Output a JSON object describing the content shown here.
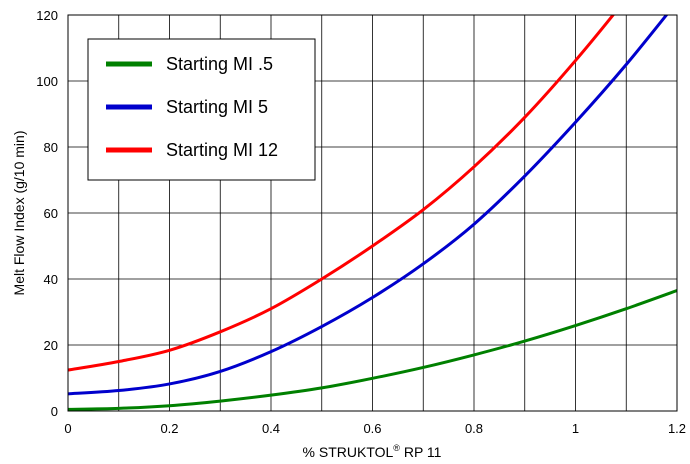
{
  "chart_data": {
    "type": "line",
    "title": "",
    "xlabel": {
      "prefix": "% STRUKTOL",
      "sup": "®",
      "suffix": " RP 11"
    },
    "ylabel": "Melt Flow Index (g/10 min)",
    "xlim": [
      0,
      1.2
    ],
    "ylim": [
      0,
      120
    ],
    "x_ticks": [
      0,
      0.2,
      0.4,
      0.6,
      0.8,
      1,
      1.2
    ],
    "x_tick_labels": [
      "0",
      "0.2",
      "0.4",
      "0.6",
      "0.8",
      "1",
      "1.2"
    ],
    "x_grid_step": 0.1,
    "y_ticks": [
      0,
      20,
      40,
      60,
      80,
      100,
      120
    ],
    "y_tick_labels": [
      "0",
      "20",
      "40",
      "60",
      "80",
      "100",
      "120"
    ],
    "grid": true,
    "legend_position": "top-left",
    "x": [
      0,
      0.1,
      0.2,
      0.3,
      0.4,
      0.5,
      0.6,
      0.7,
      0.8,
      0.9,
      1.0,
      1.1,
      1.2
    ],
    "series": [
      {
        "name": "Starting MI .5",
        "color": "#008000",
        "values": [
          0.5,
          0.8,
          1.6,
          3.0,
          4.8,
          7.0,
          9.9,
          13.2,
          17.0,
          21.2,
          25.9,
          31.0,
          36.5
        ]
      },
      {
        "name": "Starting MI 5",
        "color": "#0000cc",
        "values": [
          5.2,
          6.2,
          8.2,
          12.0,
          18.0,
          25.6,
          34.4,
          44.6,
          56.6,
          71.2,
          87.5,
          105.0,
          124.0
        ]
      },
      {
        "name": "Starting MI 12",
        "color": "#ff0000",
        "values": [
          12.4,
          15.0,
          18.4,
          24.0,
          31.0,
          40.0,
          50.0,
          61.0,
          74.0,
          89.0,
          106.2,
          125.0,
          145.0
        ]
      }
    ]
  }
}
